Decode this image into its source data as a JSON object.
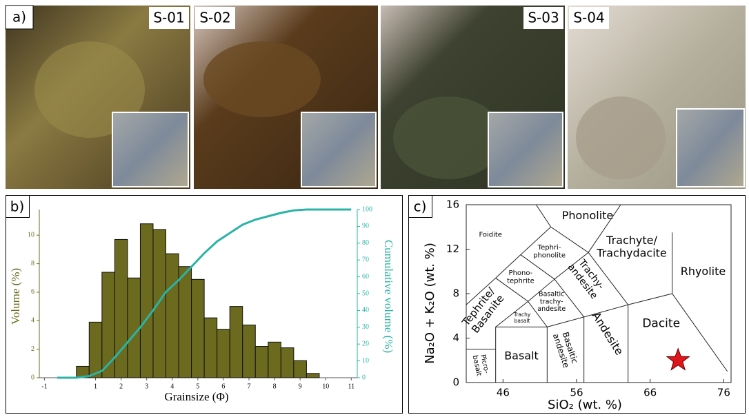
{
  "panel_labels": [
    "a)",
    "b)",
    "c)"
  ],
  "photo_labels": [
    "S-01",
    "S-02",
    "S-03",
    "S-04"
  ],
  "chart_data": [
    {
      "type": "histogram",
      "xlabel": "Grainsize (Φ)",
      "ylabel": "Volume (%)",
      "y2label": "Cumulative volume (%)",
      "bins": [
        0.25,
        0.75,
        1.25,
        1.75,
        2.25,
        2.75,
        3.25,
        3.75,
        4.25,
        4.75,
        5.25,
        5.75,
        6.25,
        6.75,
        7.25,
        7.75,
        8.25,
        8.75,
        9.25,
        9.75
      ],
      "values": [
        0.8,
        3.9,
        7.4,
        9.7,
        7.0,
        10.8,
        10.4,
        8.7,
        7.8,
        6.9,
        4.2,
        3.4,
        5.0,
        3.7,
        2.2,
        2.5,
        2.1,
        1.2,
        0.3
      ],
      "color": "#6b6a1f",
      "line": {
        "x": [
          -0.5,
          0.25,
          0.75,
          1.25,
          1.75,
          2.25,
          2.75,
          3.25,
          3.75,
          4.25,
          4.75,
          5.25,
          5.75,
          6.25,
          6.75,
          7.25,
          7.75,
          8.25,
          8.75,
          9.25,
          11
        ],
        "values": [
          0,
          0,
          1,
          4,
          12,
          21,
          30,
          40,
          51,
          58,
          66,
          74,
          81,
          86,
          91,
          94,
          96,
          98,
          99.5,
          100,
          100
        ],
        "color": "#2ab3a6",
        "axis": "y2"
      },
      "xlim": [
        -1.2,
        11.1
      ],
      "xticks": [
        -1,
        1,
        2,
        3,
        4,
        5,
        6,
        7,
        8,
        9,
        10,
        11
      ],
      "ylim": [
        0,
        11.8
      ],
      "yticks": [
        0,
        2,
        4,
        6,
        8,
        10
      ],
      "y2lim": [
        0,
        100
      ],
      "y2ticks": [
        0,
        10,
        20,
        30,
        40,
        50,
        60,
        70,
        80,
        90,
        100
      ]
    },
    {
      "type": "scatter",
      "xlabel": "SiO₂ (wt. %)",
      "ylabel": "Na₂O + K₂O (wt. %)",
      "x": [
        69.8
      ],
      "values": [
        2.0
      ],
      "color": "#e0141c",
      "xlim": [
        41,
        77
      ],
      "xticks": [
        46,
        56,
        66,
        76
      ],
      "ylim": [
        0,
        16
      ],
      "yticks": [
        0,
        4,
        8,
        12,
        16
      ],
      "fields": [
        [
          "Foidite"
        ],
        [
          "Phonolite"
        ],
        [
          "Tephri-",
          "phonolite"
        ],
        [
          "Trachyte/",
          "Trachydacite"
        ],
        [
          "Rhyolite"
        ],
        [
          "Phono-",
          "tephrite"
        ],
        [
          "Trachy-",
          "andesite"
        ],
        [
          "Tephrite/",
          "Basanite"
        ],
        [
          "Basaltic",
          "trachy-",
          "andesite"
        ],
        [
          "Trachy",
          "basalt"
        ],
        [
          "Dacite"
        ],
        [
          "Andesite"
        ],
        [
          "Basaltic",
          "andesite"
        ],
        [
          "Basalt"
        ],
        [
          "Picro-",
          "basalt"
        ]
      ]
    }
  ]
}
